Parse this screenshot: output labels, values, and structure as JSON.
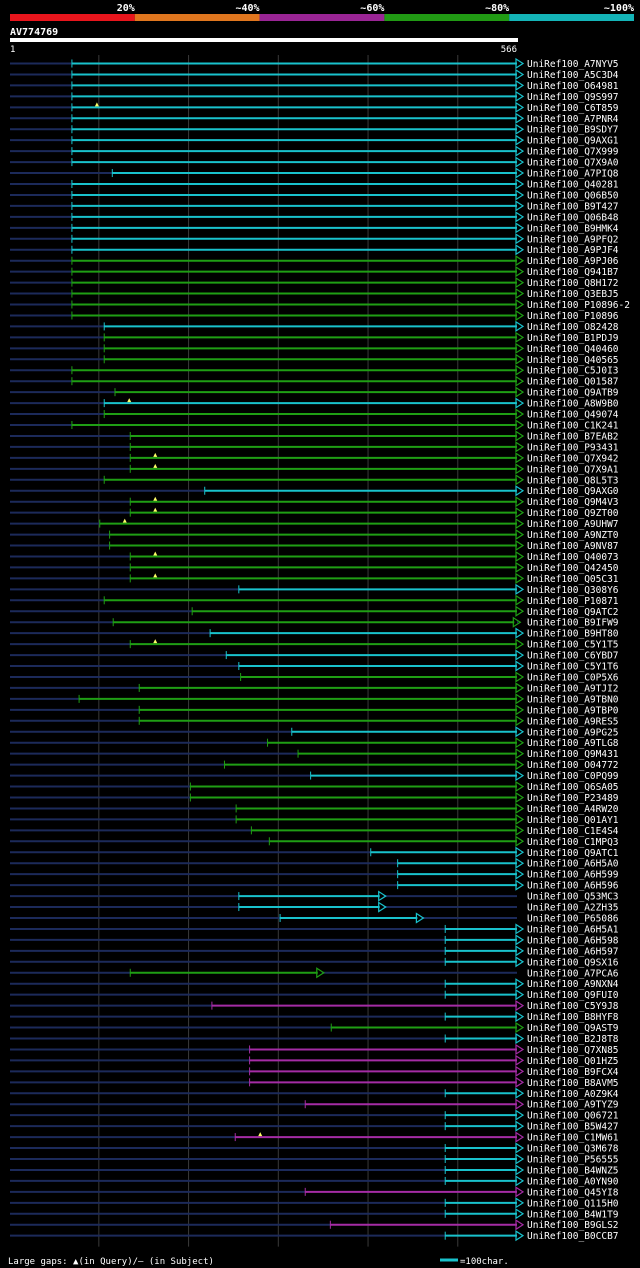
{
  "legend": {
    "bins": [
      {
        "label": "20%",
        "color": "#e8151c"
      },
      {
        "label": "~40%",
        "color": "#e0761e"
      },
      {
        "label": "~60%",
        "color": "#9a2595"
      },
      {
        "label": "~80%",
        "color": "#219a14"
      },
      {
        "label": "~100%",
        "color": "#14b4b8"
      }
    ]
  },
  "query": {
    "name": "AV774769",
    "start": "1",
    "end": "566"
  },
  "footer": {
    "gap_note": "Large gaps: ▲(in Query)/— (in Subject)",
    "scale_note": "=100char."
  },
  "chart_data": {
    "type": "alignment-map",
    "query_length": 566,
    "hits": [
      {
        "name": "UniRef100_A7NYV5",
        "start": 70,
        "end": 566,
        "color": "cyan"
      },
      {
        "name": "UniRef100_A5C3D4",
        "start": 70,
        "end": 566,
        "color": "cyan"
      },
      {
        "name": "UniRef100_O64981",
        "start": 70,
        "end": 566,
        "color": "cyan"
      },
      {
        "name": "UniRef100_Q9S997",
        "start": 70,
        "end": 566,
        "color": "cyan"
      },
      {
        "name": "UniRef100_C6T859",
        "start": 70,
        "end": 566,
        "color": "cyan",
        "gap": true
      },
      {
        "name": "UniRef100_A7PNR4",
        "start": 70,
        "end": 566,
        "color": "cyan"
      },
      {
        "name": "UniRef100_B9SDY7",
        "start": 70,
        "end": 566,
        "color": "cyan"
      },
      {
        "name": "UniRef100_Q9AXG1",
        "start": 70,
        "end": 566,
        "color": "cyan"
      },
      {
        "name": "UniRef100_Q7X999",
        "start": 70,
        "end": 566,
        "color": "cyan"
      },
      {
        "name": "UniRef100_Q7X9A0",
        "start": 70,
        "end": 566,
        "color": "cyan"
      },
      {
        "name": "UniRef100_A7PIQ8",
        "start": 115,
        "end": 566,
        "color": "cyan"
      },
      {
        "name": "UniRef100_Q40281",
        "start": 70,
        "end": 566,
        "color": "cyan"
      },
      {
        "name": "UniRef100_Q06B50",
        "start": 70,
        "end": 566,
        "color": "cyan"
      },
      {
        "name": "UniRef100_B9T427",
        "start": 70,
        "end": 566,
        "color": "cyan"
      },
      {
        "name": "UniRef100_Q06B48",
        "start": 70,
        "end": 566,
        "color": "cyan"
      },
      {
        "name": "UniRef100_B9HMK4",
        "start": 70,
        "end": 566,
        "color": "cyan"
      },
      {
        "name": "UniRef100_A9PFQ2",
        "start": 70,
        "end": 566,
        "color": "cyan"
      },
      {
        "name": "UniRef100_A9PJF4",
        "start": 70,
        "end": 566,
        "color": "cyan"
      },
      {
        "name": "UniRef100_A9PJ06",
        "start": 70,
        "end": 566,
        "color": "green"
      },
      {
        "name": "UniRef100_Q941B7",
        "start": 70,
        "end": 566,
        "color": "green"
      },
      {
        "name": "UniRef100_Q8H172",
        "start": 70,
        "end": 566,
        "color": "green"
      },
      {
        "name": "UniRef100_Q3EBJ5",
        "start": 70,
        "end": 566,
        "color": "green"
      },
      {
        "name": "UniRef100_P10896-2",
        "start": 70,
        "end": 566,
        "color": "green"
      },
      {
        "name": "UniRef100_P10896",
        "start": 70,
        "end": 566,
        "color": "green"
      },
      {
        "name": "UniRef100_O82428",
        "start": 106,
        "end": 566,
        "color": "cyan"
      },
      {
        "name": "UniRef100_B1PDJ9",
        "start": 106,
        "end": 566,
        "color": "green"
      },
      {
        "name": "UniRef100_Q40460",
        "start": 106,
        "end": 566,
        "color": "green"
      },
      {
        "name": "UniRef100_Q40565",
        "start": 106,
        "end": 566,
        "color": "green"
      },
      {
        "name": "UniRef100_C5J0I3",
        "start": 70,
        "end": 566,
        "color": "green"
      },
      {
        "name": "UniRef100_Q01587",
        "start": 70,
        "end": 566,
        "color": "green"
      },
      {
        "name": "UniRef100_Q9ATB9",
        "start": 118,
        "end": 566,
        "color": "green"
      },
      {
        "name": "UniRef100_A8W9B0",
        "start": 106,
        "end": 566,
        "color": "cyan",
        "gap": true
      },
      {
        "name": "UniRef100_Q49074",
        "start": 106,
        "end": 566,
        "color": "green"
      },
      {
        "name": "UniRef100_C1K241",
        "start": 70,
        "end": 566,
        "color": "green"
      },
      {
        "name": "UniRef100_B7EAB2",
        "start": 135,
        "end": 566,
        "color": "green"
      },
      {
        "name": "UniRef100_P93431",
        "start": 135,
        "end": 566,
        "color": "green"
      },
      {
        "name": "UniRef100_Q7X942",
        "start": 135,
        "end": 566,
        "color": "green",
        "gap": true
      },
      {
        "name": "UniRef100_Q7X9A1",
        "start": 135,
        "end": 566,
        "color": "green",
        "gap": true
      },
      {
        "name": "UniRef100_Q8L5T3",
        "start": 106,
        "end": 566,
        "color": "green"
      },
      {
        "name": "UniRef100_Q9AXG0",
        "start": 218,
        "end": 566,
        "color": "cyan"
      },
      {
        "name": "UniRef100_Q9M4V3",
        "start": 135,
        "end": 566,
        "color": "green",
        "gap": true
      },
      {
        "name": "UniRef100_Q9ZT00",
        "start": 135,
        "end": 566,
        "color": "green",
        "gap": true
      },
      {
        "name": "UniRef100_A9UHW7",
        "start": 101,
        "end": 566,
        "color": "green",
        "gap": true
      },
      {
        "name": "UniRef100_A9NZT0",
        "start": 112,
        "end": 566,
        "color": "green"
      },
      {
        "name": "UniRef100_A9NV87",
        "start": 112,
        "end": 566,
        "color": "green"
      },
      {
        "name": "UniRef100_Q40073",
        "start": 135,
        "end": 566,
        "color": "green",
        "gap": true
      },
      {
        "name": "UniRef100_Q42450",
        "start": 135,
        "end": 566,
        "color": "green"
      },
      {
        "name": "UniRef100_Q05C31",
        "start": 135,
        "end": 566,
        "color": "green",
        "gap": true
      },
      {
        "name": "UniRef100_Q308Y6",
        "start": 256,
        "end": 566,
        "color": "cyan"
      },
      {
        "name": "UniRef100_P10871",
        "start": 106,
        "end": 566,
        "color": "green"
      },
      {
        "name": "UniRef100_Q9ATC2",
        "start": 204,
        "end": 566,
        "color": "green"
      },
      {
        "name": "UniRef100_B9IFW9",
        "start": 116,
        "end": 563,
        "color": "green"
      },
      {
        "name": "UniRef100_B9HT80",
        "start": 224,
        "end": 566,
        "color": "cyan"
      },
      {
        "name": "UniRef100_C5Y1T5",
        "start": 135,
        "end": 566,
        "color": "green",
        "gap": true
      },
      {
        "name": "UniRef100_C6YBD7",
        "start": 242,
        "end": 566,
        "color": "cyan"
      },
      {
        "name": "UniRef100_C5Y1T6",
        "start": 256,
        "end": 566,
        "color": "cyan"
      },
      {
        "name": "UniRef100_C0P5X6",
        "start": 258,
        "end": 566,
        "color": "green"
      },
      {
        "name": "UniRef100_A9TJI2",
        "start": 145,
        "end": 566,
        "color": "green"
      },
      {
        "name": "UniRef100_A9TBN0",
        "start": 78,
        "end": 566,
        "color": "green"
      },
      {
        "name": "UniRef100_A9TBP0",
        "start": 145,
        "end": 566,
        "color": "green"
      },
      {
        "name": "UniRef100_A9RES5",
        "start": 145,
        "end": 566,
        "color": "green"
      },
      {
        "name": "UniRef100_A9PG25",
        "start": 315,
        "end": 566,
        "color": "cyan"
      },
      {
        "name": "UniRef100_A9TLG8",
        "start": 288,
        "end": 566,
        "color": "green"
      },
      {
        "name": "UniRef100_Q9M431",
        "start": 322,
        "end": 566,
        "color": "green"
      },
      {
        "name": "UniRef100_O04772",
        "start": 240,
        "end": 566,
        "color": "green"
      },
      {
        "name": "UniRef100_C0PQ99",
        "start": 336,
        "end": 566,
        "color": "cyan"
      },
      {
        "name": "UniRef100_Q6SA05",
        "start": 202,
        "end": 566,
        "color": "green"
      },
      {
        "name": "UniRef100_P23489",
        "start": 202,
        "end": 566,
        "color": "green"
      },
      {
        "name": "UniRef100_A4RW20",
        "start": 253,
        "end": 566,
        "color": "green"
      },
      {
        "name": "UniRef100_Q01AY1",
        "start": 253,
        "end": 566,
        "color": "green"
      },
      {
        "name": "UniRef100_C1E4S4",
        "start": 270,
        "end": 566,
        "color": "green"
      },
      {
        "name": "UniRef100_C1MPQ3",
        "start": 290,
        "end": 566,
        "color": "green"
      },
      {
        "name": "UniRef100_Q9ATC1",
        "start": 403,
        "end": 566,
        "color": "cyan"
      },
      {
        "name": "UniRef100_A6H5A0",
        "start": 433,
        "end": 566,
        "color": "cyan"
      },
      {
        "name": "UniRef100_A6H599",
        "start": 433,
        "end": 566,
        "color": "cyan"
      },
      {
        "name": "UniRef100_A6H596",
        "start": 433,
        "end": 566,
        "color": "cyan"
      },
      {
        "name": "UniRef100_Q53MC3",
        "start": 256,
        "end": 413,
        "color": "cyan"
      },
      {
        "name": "UniRef100_A2ZH35",
        "start": 256,
        "end": 413,
        "color": "cyan"
      },
      {
        "name": "UniRef100_P65086",
        "start": 302,
        "end": 455,
        "color": "cyan"
      },
      {
        "name": "UniRef100_A6H5A1",
        "start": 486,
        "end": 566,
        "color": "cyan"
      },
      {
        "name": "UniRef100_A6H598",
        "start": 486,
        "end": 566,
        "color": "cyan"
      },
      {
        "name": "UniRef100_A6H597",
        "start": 486,
        "end": 566,
        "color": "cyan"
      },
      {
        "name": "UniRef100_Q9SX16",
        "start": 486,
        "end": 566,
        "color": "cyan"
      },
      {
        "name": "UniRef100_A7PCA6",
        "start": 135,
        "end": 344,
        "color": "green"
      },
      {
        "name": "UniRef100_A9NXN4",
        "start": 486,
        "end": 566,
        "color": "cyan"
      },
      {
        "name": "UniRef100_Q9FUI0",
        "start": 486,
        "end": 566,
        "color": "cyan"
      },
      {
        "name": "UniRef100_C5Y9J8",
        "start": 226,
        "end": 566,
        "color": "purple"
      },
      {
        "name": "UniRef100_B8HYF8",
        "start": 486,
        "end": 566,
        "color": "cyan"
      },
      {
        "name": "UniRef100_Q9AST9",
        "start": 359,
        "end": 566,
        "color": "green"
      },
      {
        "name": "UniRef100_B2J8T8",
        "start": 486,
        "end": 566,
        "color": "cyan"
      },
      {
        "name": "UniRef100_Q7XN85",
        "start": 268,
        "end": 566,
        "color": "purple"
      },
      {
        "name": "UniRef100_Q01HZ5",
        "start": 268,
        "end": 566,
        "color": "purple"
      },
      {
        "name": "UniRef100_B9FCX4",
        "start": 268,
        "end": 566,
        "color": "purple"
      },
      {
        "name": "UniRef100_B8AVM5",
        "start": 268,
        "end": 566,
        "color": "purple"
      },
      {
        "name": "UniRef100_A0Z9K4",
        "start": 486,
        "end": 566,
        "color": "cyan"
      },
      {
        "name": "UniRef100_A9TYZ9",
        "start": 330,
        "end": 566,
        "color": "purple"
      },
      {
        "name": "UniRef100_Q06721",
        "start": 486,
        "end": 566,
        "color": "cyan"
      },
      {
        "name": "UniRef100_B5W427",
        "start": 486,
        "end": 566,
        "color": "cyan"
      },
      {
        "name": "UniRef100_C1MW61",
        "start": 252,
        "end": 566,
        "color": "purple",
        "gap": true
      },
      {
        "name": "UniRef100_Q3M678",
        "start": 486,
        "end": 566,
        "color": "cyan"
      },
      {
        "name": "UniRef100_P56555",
        "start": 486,
        "end": 566,
        "color": "cyan"
      },
      {
        "name": "UniRef100_B4WNZ5",
        "start": 486,
        "end": 566,
        "color": "cyan"
      },
      {
        "name": "UniRef100_A0YN90",
        "start": 486,
        "end": 566,
        "color": "cyan"
      },
      {
        "name": "UniRef100_Q45YI8",
        "start": 330,
        "end": 566,
        "color": "purple"
      },
      {
        "name": "UniRef100_Q115H0",
        "start": 486,
        "end": 566,
        "color": "cyan"
      },
      {
        "name": "UniRef100_B4W1T9",
        "start": 486,
        "end": 566,
        "color": "cyan"
      },
      {
        "name": "UniRef100_B9GLS2",
        "start": 358,
        "end": 566,
        "color": "purple"
      },
      {
        "name": "UniRef100_B0CCB7",
        "start": 486,
        "end": 566,
        "color": "cyan"
      }
    ]
  }
}
